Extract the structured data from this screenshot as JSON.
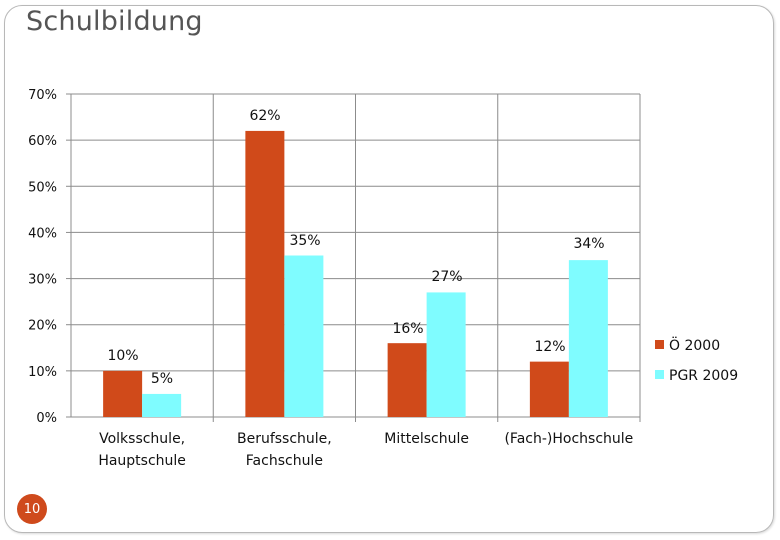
{
  "slide": {
    "title": "Schulbildung",
    "page_number": "10"
  },
  "colors": {
    "series1": "#d04a1a",
    "series2": "#7ffcff",
    "badge": "#cf4a1c"
  },
  "chart_data": {
    "type": "bar",
    "title": "",
    "categories": [
      [
        "Volksschule,",
        "Hauptschule"
      ],
      [
        "Berufsschule,",
        "Fachschule"
      ],
      [
        "Mittelschule"
      ],
      [
        "(Fach-)Hochschule"
      ]
    ],
    "series": [
      {
        "name": "Ö 2000",
        "values": [
          10,
          62,
          16,
          12
        ],
        "labels": [
          "10%",
          "62%",
          "16%",
          "12%"
        ]
      },
      {
        "name": "PGR 2009",
        "values": [
          5,
          35,
          27,
          34
        ],
        "labels": [
          "5%",
          "35%",
          "27%",
          "34%"
        ]
      }
    ],
    "ylim": [
      0,
      70
    ],
    "yticks": [
      "0%",
      "10%",
      "20%",
      "30%",
      "40%",
      "50%",
      "60%",
      "70%"
    ],
    "grid": true,
    "legend": "right"
  }
}
